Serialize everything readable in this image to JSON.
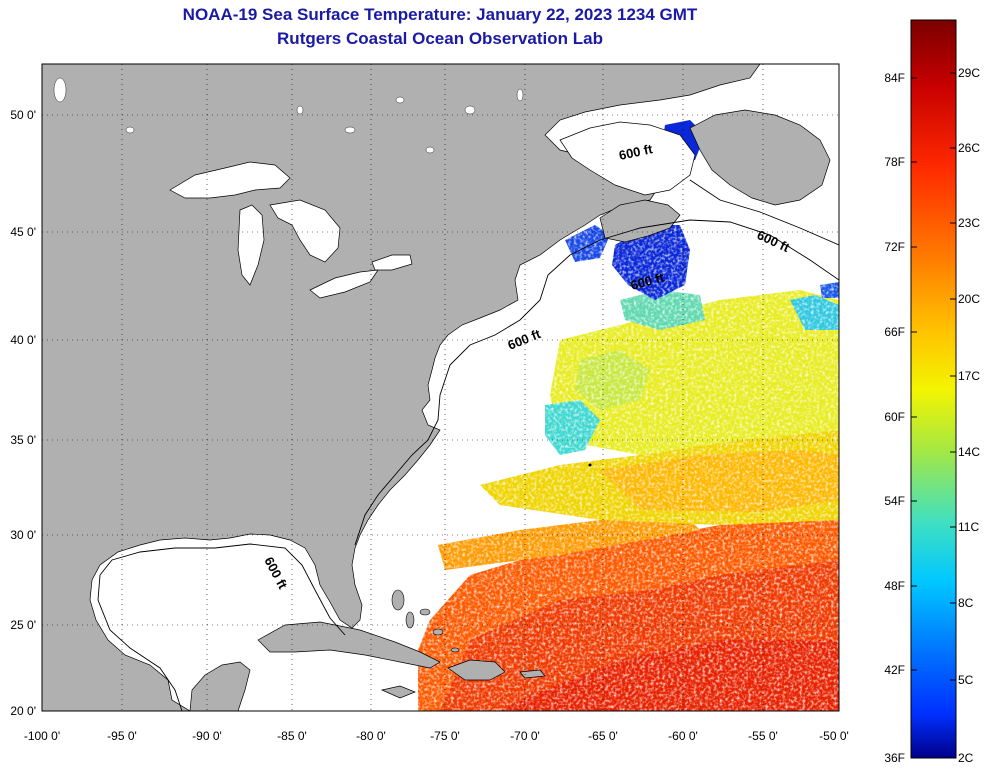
{
  "header": {
    "title": "NOAA-19 Sea Surface Temperature:  January 22, 2023 1234 GMT",
    "subtitle": "Rutgers Coastal Ocean Observation Lab"
  },
  "map": {
    "lon_range": [
      -100,
      -50
    ],
    "lat_range": [
      20,
      52.5
    ],
    "lon_ticks": [
      "-100 0'",
      "-95 0'",
      "-90 0'",
      "-85 0'",
      "-80 0'",
      "-75 0'",
      "-70 0'",
      "-65 0'",
      "-60 0'",
      "-55 0'",
      "-50 0'"
    ],
    "lat_ticks": [
      "20 0'",
      "25 0'",
      "30 0'",
      "35 0'",
      "40 0'",
      "45 0'",
      "50 0'"
    ],
    "land_color": "#b0b0b0",
    "water_nodata_color": "#ffffff",
    "contour_labels": [
      "600 ft",
      "600 ft",
      "600 ft",
      "600 ft",
      "600 ft"
    ]
  },
  "colorbar": {
    "fahrenheit_labels": [
      "84F",
      "78F",
      "72F",
      "66F",
      "60F",
      "54F",
      "48F",
      "42F",
      "36F"
    ],
    "celsius_labels": [
      "29C",
      "26C",
      "23C",
      "20C",
      "17C",
      "14C",
      "11C",
      "8C",
      "5C",
      "2C"
    ],
    "colors_top_to_bottom": [
      "#7a0000",
      "#c80000",
      "#ff2a00",
      "#ff7a00",
      "#ffc200",
      "#f4f400",
      "#a8e840",
      "#40e0c0",
      "#00c8ff",
      "#0070ff",
      "#0030ff",
      "#00008a"
    ]
  }
}
